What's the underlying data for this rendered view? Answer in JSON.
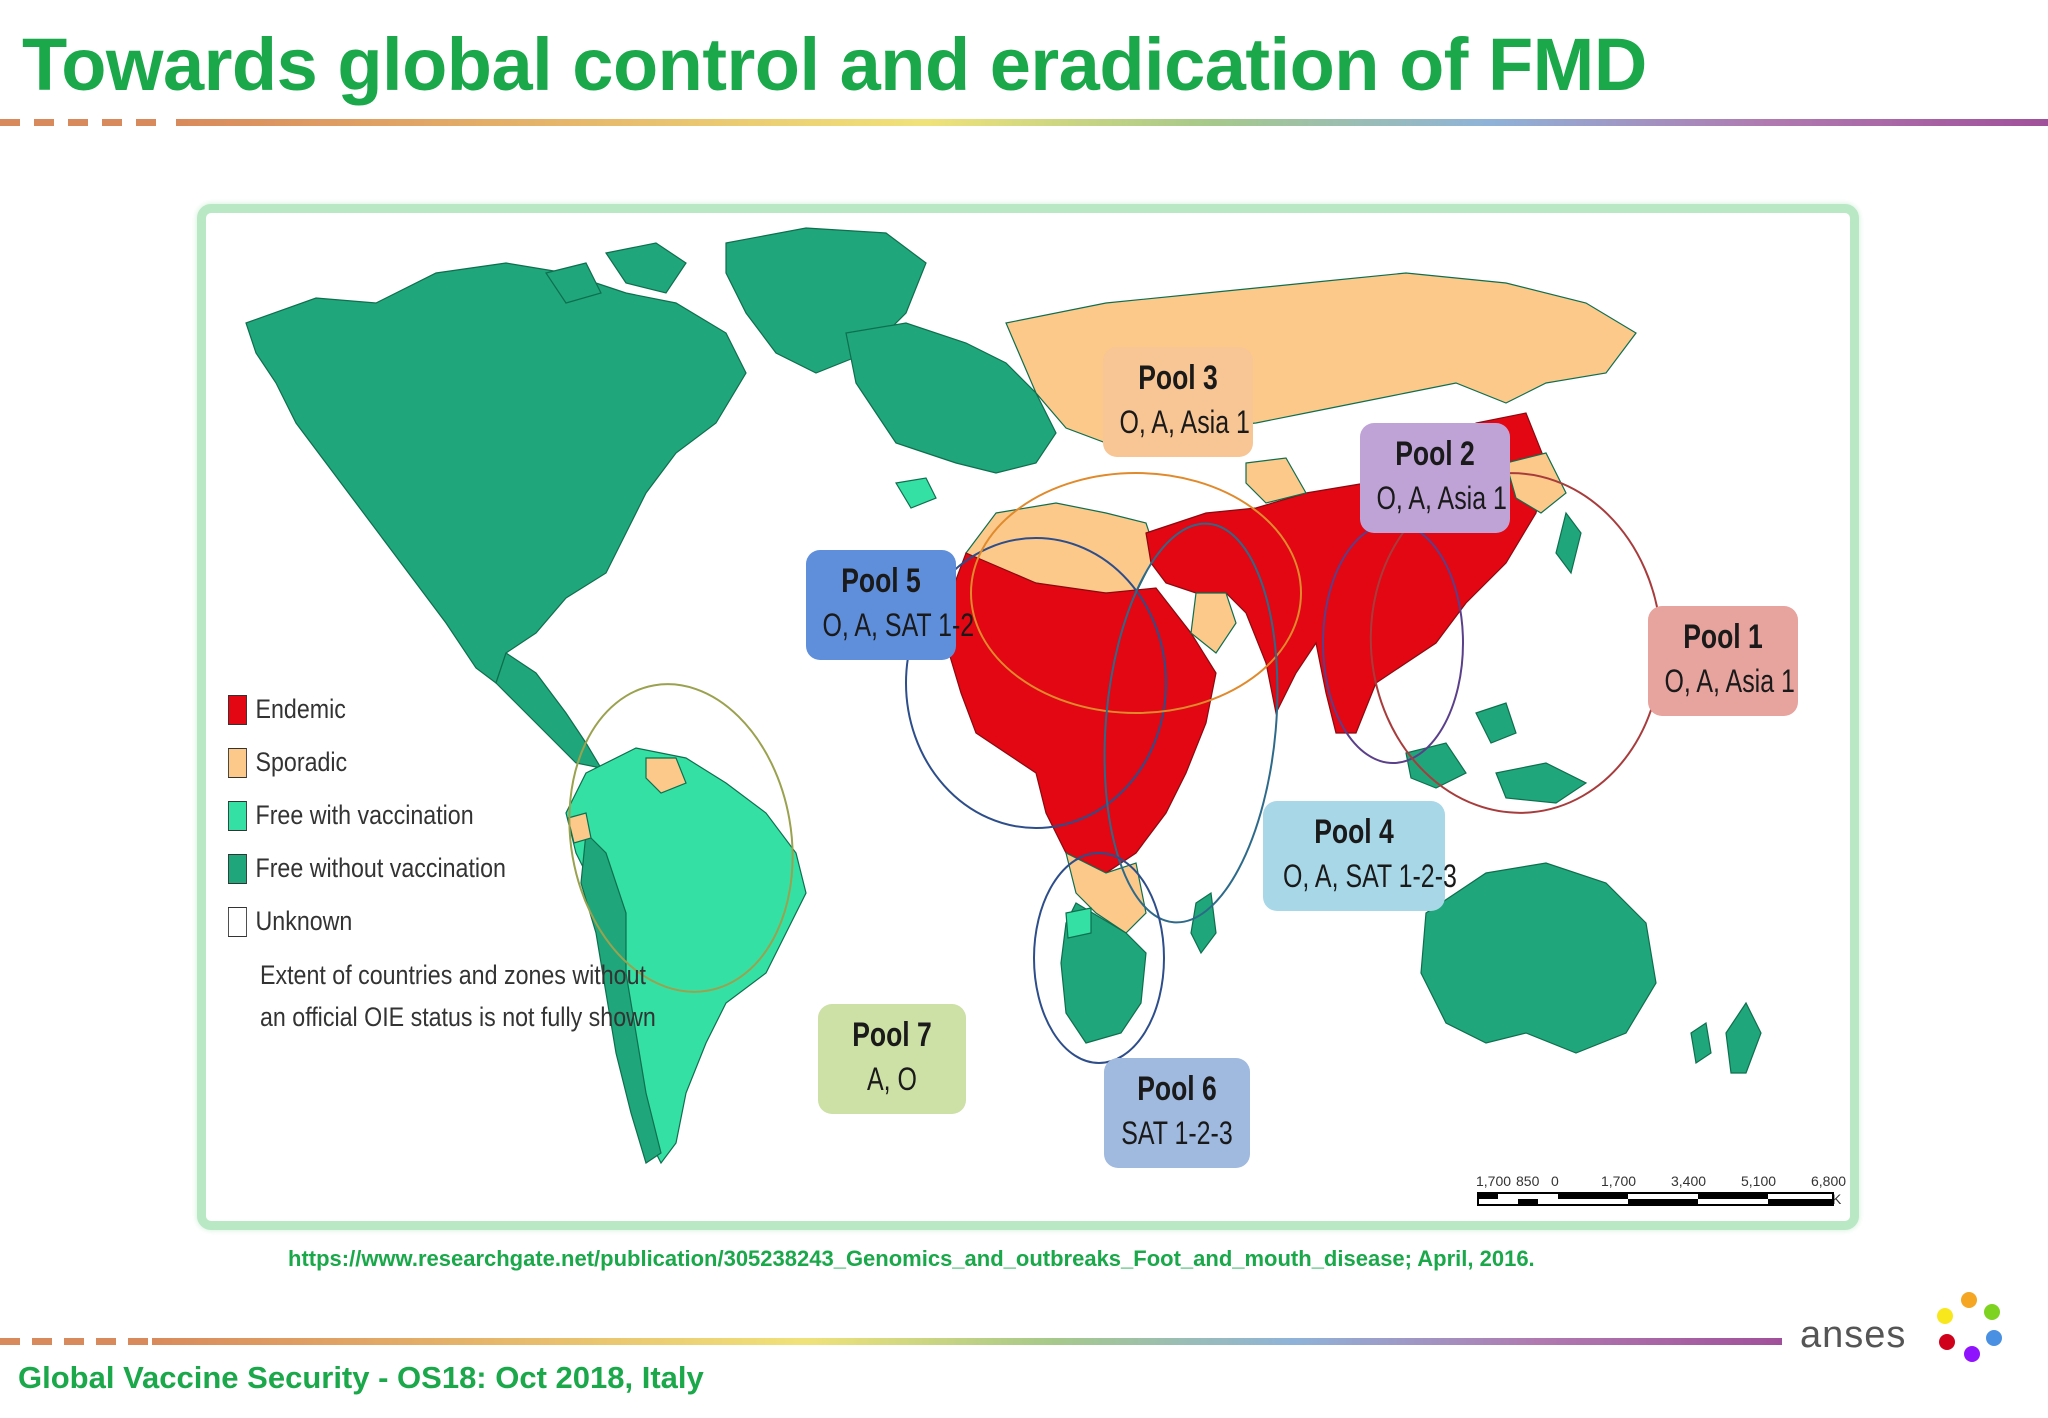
{
  "slide": {
    "title": "Towards global control and eradication of FMD",
    "source": "https://www.researchgate.net/publication/305238243_Genomics_and_outbreaks_Foot_and_mouth_disease; April, 2016.",
    "footer": "Global Vaccine Security - OS18: Oct 2018, Italy",
    "logo_text": "anses"
  },
  "map": {
    "legend": [
      {
        "label": "Endemic",
        "color": "#e30613"
      },
      {
        "label": "Sporadic",
        "color": "#fcc98a"
      },
      {
        "label": "Free with vaccination",
        "color": "#35e0a5"
      },
      {
        "label": "Free without vaccination",
        "color": "#1fa67a"
      },
      {
        "label": "Unknown",
        "color": "#ffffff"
      }
    ],
    "legend_note_1": "Extent of countries and zones without",
    "legend_note_2": "an official OIE status is not fully shown",
    "pools": [
      {
        "name": "Pool 1",
        "types": "O, A, Asia 1",
        "color": "#e7a39e"
      },
      {
        "name": "Pool 2",
        "types": "O, A, Asia 1",
        "color": "#bfa3d6"
      },
      {
        "name": "Pool 3",
        "types": "O, A, Asia 1",
        "color": "#f8c594"
      },
      {
        "name": "Pool 4",
        "types": "O, A, SAT 1-2-3",
        "color": "#a8d7e8"
      },
      {
        "name": "Pool 5",
        "types": "O, A, SAT 1-2",
        "color": "#5f8fdb"
      },
      {
        "name": "Pool 6",
        "types": "SAT 1-2-3",
        "color": "#9fb9df"
      },
      {
        "name": "Pool 7",
        "types": "A, O",
        "color": "#cde0a6"
      }
    ],
    "scale_labels": [
      "1,700",
      "850",
      "0",
      "1,700",
      "3,400",
      "5,100",
      "6,800"
    ],
    "scale_unit": "K"
  }
}
